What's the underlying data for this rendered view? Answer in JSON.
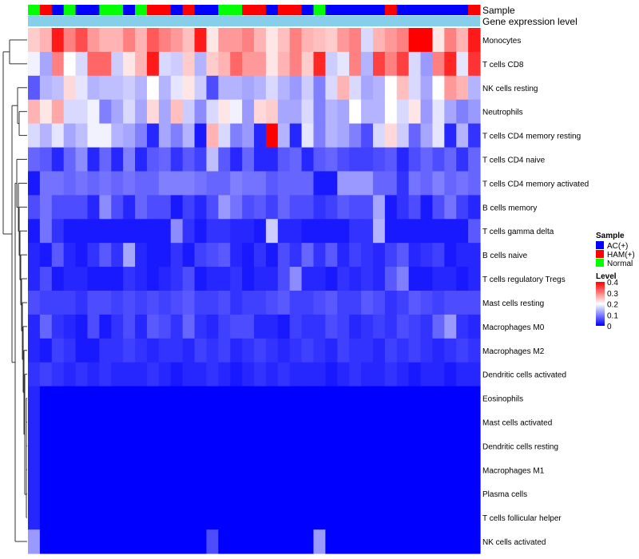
{
  "chart_data": {
    "type": "heatmap",
    "title": "",
    "annotation_titles": {
      "sample": "Sample",
      "gene": "Gene expression level"
    },
    "legend": {
      "sample_title": "Sample",
      "sample_items": [
        {
          "label": "AC(+)",
          "color": "#0000ff"
        },
        {
          "label": "HAM(+)",
          "color": "#ff0000"
        },
        {
          "label": "Normal",
          "color": "#00ff00"
        }
      ],
      "level_title": "Level",
      "level_ticks": [
        "0.4",
        "0.3",
        "0.2",
        "0.1",
        "0"
      ],
      "level_range": [
        0,
        0.4
      ]
    },
    "colorscale": {
      "low": "#0000ff",
      "mid": "#ffffff",
      "high": "#ff0000",
      "midpoint": 0.2
    },
    "gene_annotation_color": "#87ceeb",
    "sample_groups": [
      "Normal",
      "HAM(+)",
      "AC(+)",
      "Normal",
      "AC(+)",
      "AC(+)",
      "Normal",
      "Normal",
      "AC(+)",
      "Normal",
      "HAM(+)",
      "HAM(+)",
      "AC(+)",
      "HAM(+)",
      "AC(+)",
      "AC(+)",
      "Normal",
      "Normal",
      "HAM(+)",
      "HAM(+)",
      "AC(+)",
      "HAM(+)",
      "HAM(+)",
      "AC(+)",
      "Normal",
      "AC(+)",
      "AC(+)",
      "AC(+)",
      "AC(+)",
      "AC(+)",
      "HAM(+)",
      "AC(+)",
      "AC(+)",
      "AC(+)",
      "AC(+)",
      "AC(+)",
      "AC(+)",
      "HAM(+)"
    ],
    "rows": [
      "Monocytes",
      "T cells CD8",
      "NK cells resting",
      "Neutrophils",
      "T cells CD4 memory resting",
      "T cells CD4 naive",
      "T cells CD4 memory activated",
      "B cells memory",
      "T cells gamma delta",
      "B cells naive",
      "T cells regulatory  Tregs",
      "Mast cells resting",
      "Macrophages M0",
      "Macrophages M2",
      "Dendritic cells activated",
      "Eosinophils",
      "Mast cells activated",
      "Dendritic cells resting",
      "Macrophages M1",
      "Plasma cells",
      "T cells follicular helper",
      "NK cells activated"
    ],
    "values": [
      [
        0.24,
        0.26,
        0.38,
        0.3,
        0.34,
        0.28,
        0.26,
        0.26,
        0.3,
        0.26,
        0.33,
        0.3,
        0.28,
        0.25,
        0.38,
        0.22,
        0.28,
        0.28,
        0.3,
        0.26,
        0.22,
        0.25,
        0.3,
        0.26,
        0.25,
        0.24,
        0.28,
        0.3,
        0.17,
        0.26,
        0.28,
        0.3,
        0.4,
        0.4,
        0.22,
        0.3,
        0.26,
        0.38
      ],
      [
        0.19,
        0.13,
        0.3,
        0.2,
        0.17,
        0.32,
        0.32,
        0.16,
        0.22,
        0.26,
        0.38,
        0.17,
        0.16,
        0.24,
        0.14,
        0.24,
        0.26,
        0.32,
        0.28,
        0.28,
        0.22,
        0.26,
        0.3,
        0.24,
        0.37,
        0.16,
        0.18,
        0.3,
        0.14,
        0.35,
        0.3,
        0.35,
        0.17,
        0.12,
        0.3,
        0.37,
        0.18,
        0.36
      ],
      [
        0.07,
        0.14,
        0.15,
        0.23,
        0.18,
        0.14,
        0.15,
        0.15,
        0.16,
        0.14,
        0.2,
        0.14,
        0.18,
        0.22,
        0.16,
        0.06,
        0.14,
        0.14,
        0.13,
        0.14,
        0.17,
        0.14,
        0.12,
        0.16,
        0.1,
        0.17,
        0.26,
        0.17,
        0.13,
        0.14,
        0.2,
        0.25,
        0.17,
        0.13,
        0.2,
        0.28,
        0.26,
        0.14
      ],
      [
        0.26,
        0.22,
        0.27,
        0.17,
        0.17,
        0.19,
        0.1,
        0.13,
        0.17,
        0.13,
        0.23,
        0.13,
        0.25,
        0.16,
        0.11,
        0.17,
        0.22,
        0.19,
        0.12,
        0.23,
        0.24,
        0.13,
        0.13,
        0.17,
        0.1,
        0.14,
        0.13,
        0.2,
        0.14,
        0.14,
        0.2,
        0.17,
        0.22,
        0.12,
        0.18,
        0.13,
        0.1,
        0.12
      ],
      [
        0.17,
        0.14,
        0.18,
        0.13,
        0.15,
        0.19,
        0.19,
        0.14,
        0.13,
        0.1,
        0.03,
        0.13,
        0.1,
        0.14,
        0.02,
        0.26,
        0.17,
        0.1,
        0.12,
        0.03,
        0.4,
        0.14,
        0.03,
        0.18,
        0.1,
        0.14,
        0.13,
        0.1,
        0.06,
        0.17,
        0.23,
        0.16,
        0.08,
        0.13,
        0.18,
        0.03,
        0.14,
        0.04
      ],
      [
        0.08,
        0.07,
        0.03,
        0.08,
        0.11,
        0.03,
        0.08,
        0.03,
        0.1,
        0.03,
        0.07,
        0.08,
        0.04,
        0.07,
        0.05,
        0.15,
        0.07,
        0.03,
        0.08,
        0.03,
        0.03,
        0.07,
        0.08,
        0.03,
        0.07,
        0.08,
        0.06,
        0.05,
        0.05,
        0.06,
        0.07,
        0.03,
        0.06,
        0.08,
        0.06,
        0.08,
        0.04,
        0.08
      ],
      [
        0.02,
        0.09,
        0.09,
        0.08,
        0.09,
        0.08,
        0.09,
        0.08,
        0.09,
        0.08,
        0.08,
        0.1,
        0.1,
        0.1,
        0.09,
        0.08,
        0.08,
        0.1,
        0.09,
        0.09,
        0.07,
        0.08,
        0.08,
        0.08,
        0.02,
        0.02,
        0.12,
        0.12,
        0.12,
        0.08,
        0.08,
        0.04,
        0.09,
        0.08,
        0.1,
        0.08,
        0.09,
        0.08
      ],
      [
        0.06,
        0.09,
        0.06,
        0.06,
        0.06,
        0.03,
        0.11,
        0.06,
        0.03,
        0.08,
        0.06,
        0.06,
        0.02,
        0.05,
        0.03,
        0.06,
        0.12,
        0.09,
        0.06,
        0.07,
        0.05,
        0.08,
        0.06,
        0.06,
        0.04,
        0.05,
        0.07,
        0.06,
        0.06,
        0.13,
        0.02,
        0.04,
        0.06,
        0.02,
        0.06,
        0.09,
        0.05,
        0.03
      ],
      [
        0.02,
        0.09,
        0.04,
        0.02,
        0.02,
        0.02,
        0.02,
        0.02,
        0.02,
        0.02,
        0.02,
        0.02,
        0.11,
        0.04,
        0.02,
        0.04,
        0.04,
        0.03,
        0.03,
        0.02,
        0.16,
        0.03,
        0.03,
        0.02,
        0.02,
        0.02,
        0.02,
        0.04,
        0.04,
        0.14,
        0.02,
        0.02,
        0.02,
        0.02,
        0.02,
        0.02,
        0.02,
        0.07
      ],
      [
        0.03,
        0.02,
        0.07,
        0.03,
        0.02,
        0.04,
        0.07,
        0.04,
        0.13,
        0.03,
        0.02,
        0.02,
        0.04,
        0.02,
        0.05,
        0.06,
        0.07,
        0.03,
        0.02,
        0.04,
        0.02,
        0.06,
        0.04,
        0.08,
        0.04,
        0.07,
        0.03,
        0.05,
        0.04,
        0.03,
        0.05,
        0.07,
        0.03,
        0.04,
        0.05,
        0.02,
        0.03,
        0.03
      ],
      [
        0.03,
        0.06,
        0.02,
        0.03,
        0.03,
        0.02,
        0.02,
        0.02,
        0.04,
        0.03,
        0.02,
        0.03,
        0.04,
        0.06,
        0.02,
        0.03,
        0.03,
        0.04,
        0.02,
        0.03,
        0.03,
        0.06,
        0.11,
        0.03,
        0.03,
        0.02,
        0.04,
        0.03,
        0.04,
        0.03,
        0.07,
        0.1,
        0.02,
        0.02,
        0.03,
        0.03,
        0.02,
        0.03
      ],
      [
        0.06,
        0.05,
        0.05,
        0.05,
        0.04,
        0.06,
        0.06,
        0.05,
        0.06,
        0.05,
        0.06,
        0.05,
        0.06,
        0.07,
        0.05,
        0.05,
        0.06,
        0.04,
        0.05,
        0.05,
        0.06,
        0.07,
        0.05,
        0.05,
        0.06,
        0.07,
        0.05,
        0.05,
        0.07,
        0.06,
        0.04,
        0.05,
        0.07,
        0.06,
        0.05,
        0.06,
        0.06,
        0.06
      ],
      [
        0.03,
        0.08,
        0.04,
        0.03,
        0.02,
        0.06,
        0.02,
        0.04,
        0.06,
        0.03,
        0.07,
        0.06,
        0.04,
        0.08,
        0.04,
        0.03,
        0.05,
        0.06,
        0.06,
        0.03,
        0.03,
        0.02,
        0.05,
        0.04,
        0.04,
        0.06,
        0.05,
        0.03,
        0.04,
        0.05,
        0.04,
        0.06,
        0.05,
        0.04,
        0.08,
        0.12,
        0.04,
        0.03
      ],
      [
        0.03,
        0.02,
        0.05,
        0.04,
        0.02,
        0.02,
        0.04,
        0.04,
        0.05,
        0.04,
        0.03,
        0.04,
        0.04,
        0.03,
        0.05,
        0.04,
        0.05,
        0.03,
        0.04,
        0.05,
        0.04,
        0.03,
        0.04,
        0.05,
        0.04,
        0.03,
        0.05,
        0.04,
        0.04,
        0.03,
        0.05,
        0.04,
        0.05,
        0.04,
        0.03,
        0.04,
        0.05,
        0.04
      ],
      [
        0.04,
        0.05,
        0.04,
        0.03,
        0.04,
        0.03,
        0.04,
        0.03,
        0.03,
        0.03,
        0.04,
        0.03,
        0.02,
        0.03,
        0.03,
        0.04,
        0.03,
        0.02,
        0.03,
        0.04,
        0.03,
        0.04,
        0.03,
        0.03,
        0.03,
        0.02,
        0.03,
        0.04,
        0.03,
        0.03,
        0.04,
        0.03,
        0.02,
        0.03,
        0.03,
        0.02,
        0.03,
        0.03
      ],
      [
        0.03,
        0,
        0,
        0,
        0,
        0,
        0,
        0,
        0,
        0,
        0,
        0,
        0,
        0,
        0,
        0,
        0,
        0,
        0,
        0,
        0,
        0,
        0,
        0,
        0,
        0,
        0,
        0,
        0,
        0,
        0,
        0,
        0,
        0,
        0,
        0,
        0,
        0
      ],
      [
        0.03,
        0,
        0,
        0,
        0,
        0,
        0,
        0,
        0,
        0,
        0,
        0,
        0,
        0,
        0,
        0,
        0,
        0,
        0,
        0,
        0,
        0,
        0,
        0,
        0,
        0,
        0,
        0,
        0,
        0,
        0,
        0,
        0,
        0,
        0,
        0,
        0,
        0
      ],
      [
        0.03,
        0,
        0,
        0,
        0,
        0,
        0,
        0,
        0,
        0,
        0,
        0,
        0,
        0,
        0,
        0,
        0,
        0,
        0,
        0,
        0,
        0,
        0,
        0,
        0,
        0,
        0,
        0,
        0,
        0,
        0,
        0,
        0,
        0,
        0,
        0,
        0,
        0
      ],
      [
        0.03,
        0,
        0,
        0,
        0,
        0,
        0,
        0,
        0,
        0,
        0,
        0,
        0,
        0,
        0,
        0,
        0,
        0,
        0,
        0,
        0,
        0,
        0,
        0,
        0,
        0,
        0,
        0,
        0,
        0,
        0,
        0,
        0,
        0,
        0,
        0,
        0,
        0
      ],
      [
        0.03,
        0,
        0,
        0,
        0,
        0,
        0,
        0,
        0,
        0,
        0,
        0,
        0,
        0,
        0,
        0,
        0,
        0,
        0,
        0,
        0,
        0,
        0,
        0,
        0,
        0,
        0,
        0,
        0,
        0,
        0,
        0,
        0,
        0,
        0,
        0,
        0,
        0
      ],
      [
        0.03,
        0,
        0,
        0,
        0,
        0,
        0,
        0,
        0,
        0,
        0,
        0,
        0,
        0,
        0,
        0,
        0,
        0,
        0,
        0,
        0,
        0,
        0,
        0,
        0,
        0,
        0,
        0,
        0,
        0,
        0,
        0,
        0,
        0,
        0,
        0,
        0,
        0
      ],
      [
        0.12,
        0,
        0,
        0,
        0,
        0,
        0,
        0,
        0,
        0,
        0,
        0,
        0,
        0,
        0,
        0.06,
        0,
        0,
        0,
        0,
        0,
        0,
        0,
        0,
        0.12,
        0,
        0,
        0,
        0,
        0,
        0,
        0,
        0,
        0,
        0,
        0,
        0,
        0
      ]
    ]
  }
}
